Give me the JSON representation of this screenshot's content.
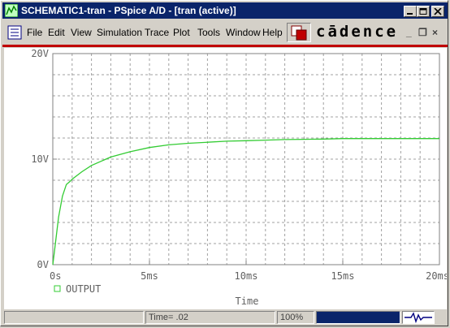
{
  "window": {
    "title": "SCHEMATIC1-tran - PSpice A/D - [tran (active)]"
  },
  "menu": {
    "items": [
      "File",
      "Edit",
      "View",
      "Simulation",
      "Trace",
      "Plot",
      "Tools",
      "Window",
      "Help"
    ]
  },
  "brand": {
    "logo_text": "cādence"
  },
  "mdi_controls": {
    "minimize": "_",
    "restore": "❐",
    "close": "×"
  },
  "chart_data": {
    "type": "line",
    "xlabel": "Time",
    "ylabel": "",
    "xlim": [
      0,
      20
    ],
    "ylim": [
      0,
      20
    ],
    "x_ticks": [
      0,
      5,
      10,
      15,
      20
    ],
    "x_tick_labels": [
      "0s",
      "5ms",
      "10ms",
      "15ms",
      "20ms"
    ],
    "y_ticks": [
      0,
      10,
      20
    ],
    "y_tick_labels": [
      "0V",
      "10V",
      "20V"
    ],
    "grid": true,
    "legend_placement": "bottom-left",
    "series": [
      {
        "name": "OUTPUT",
        "color": "#33cc33",
        "x": [
          0,
          0.1,
          0.3,
          0.5,
          0.7,
          0.9,
          1.0,
          1.5,
          2.0,
          3.0,
          4.0,
          5.0,
          6.0,
          7.0,
          8.0,
          9.0,
          10.0,
          11.0,
          12.0,
          13.0,
          14.0,
          15.0,
          16.0,
          17.0,
          18.0,
          19.0,
          20.0
        ],
        "y": [
          0,
          1.5,
          4.5,
          6.5,
          7.6,
          7.9,
          8.1,
          8.8,
          9.4,
          10.2,
          10.7,
          11.1,
          11.35,
          11.5,
          11.6,
          11.7,
          11.75,
          11.8,
          11.85,
          11.88,
          11.9,
          11.95,
          11.95,
          11.95,
          11.95,
          11.95,
          11.95
        ]
      }
    ]
  },
  "statusbar": {
    "time_readout": "Time= .02",
    "zoom": "100%"
  }
}
